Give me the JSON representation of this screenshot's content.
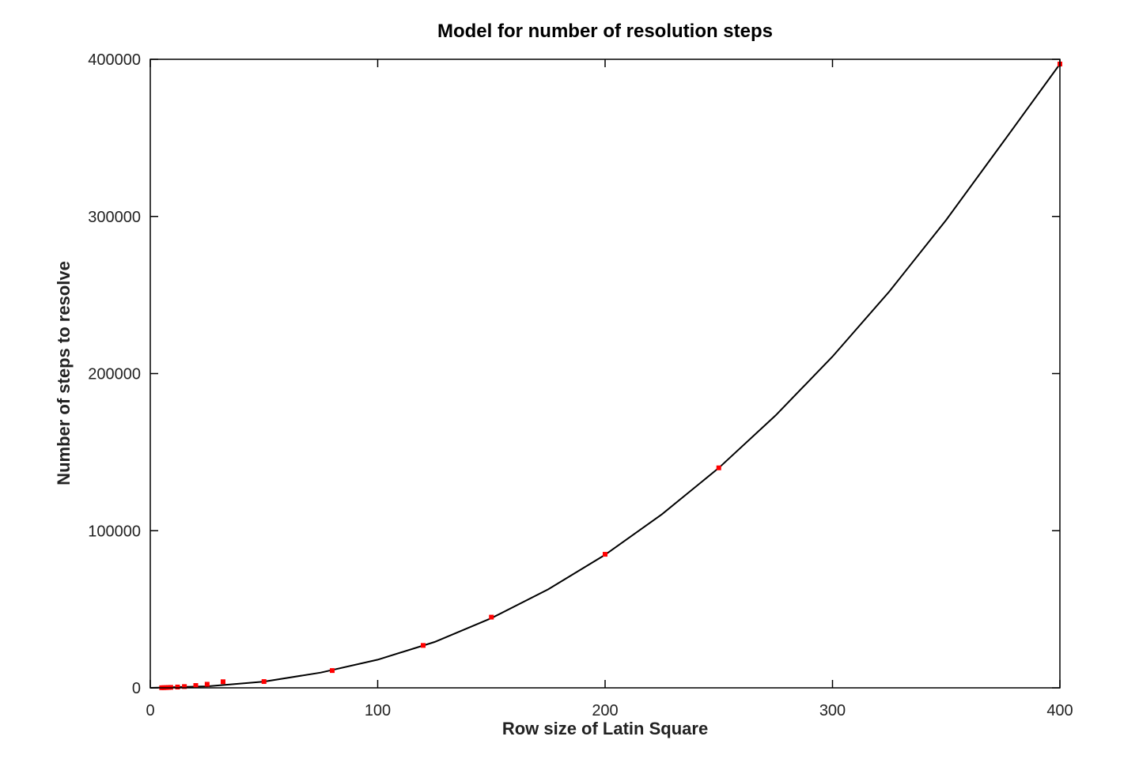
{
  "chart_data": {
    "type": "scatter",
    "title": "Model for number of resolution steps",
    "xlabel": "Row size of Latin Square",
    "ylabel": "Number of steps to resolve",
    "xlim": [
      0,
      400
    ],
    "ylim": [
      0,
      400000
    ],
    "xticks": [
      0,
      100,
      200,
      300,
      400
    ],
    "yticks": [
      0,
      100000,
      200000,
      300000,
      400000
    ],
    "grid": false,
    "series": [
      {
        "kind": "points",
        "color": "#ff0000",
        "x": [
          5,
          6,
          7,
          8,
          9,
          12,
          15,
          20,
          25,
          32,
          50,
          80,
          120,
          150,
          200,
          250,
          400
        ],
        "y": [
          80,
          120,
          170,
          230,
          300,
          520,
          820,
          1500,
          2300,
          3900,
          4000,
          11000,
          27000,
          45000,
          85000,
          140000,
          397000
        ]
      },
      {
        "kind": "line",
        "color": "#000000",
        "x": [
          0,
          25,
          50,
          75,
          100,
          125,
          150,
          175,
          200,
          225,
          250,
          275,
          300,
          325,
          350,
          375,
          400
        ],
        "y": [
          0,
          970,
          3950,
          9700,
          17900,
          29200,
          44400,
          62700,
          84700,
          110500,
          140000,
          173400,
          210800,
          252300,
          297800,
          347200,
          397000
        ]
      }
    ]
  }
}
